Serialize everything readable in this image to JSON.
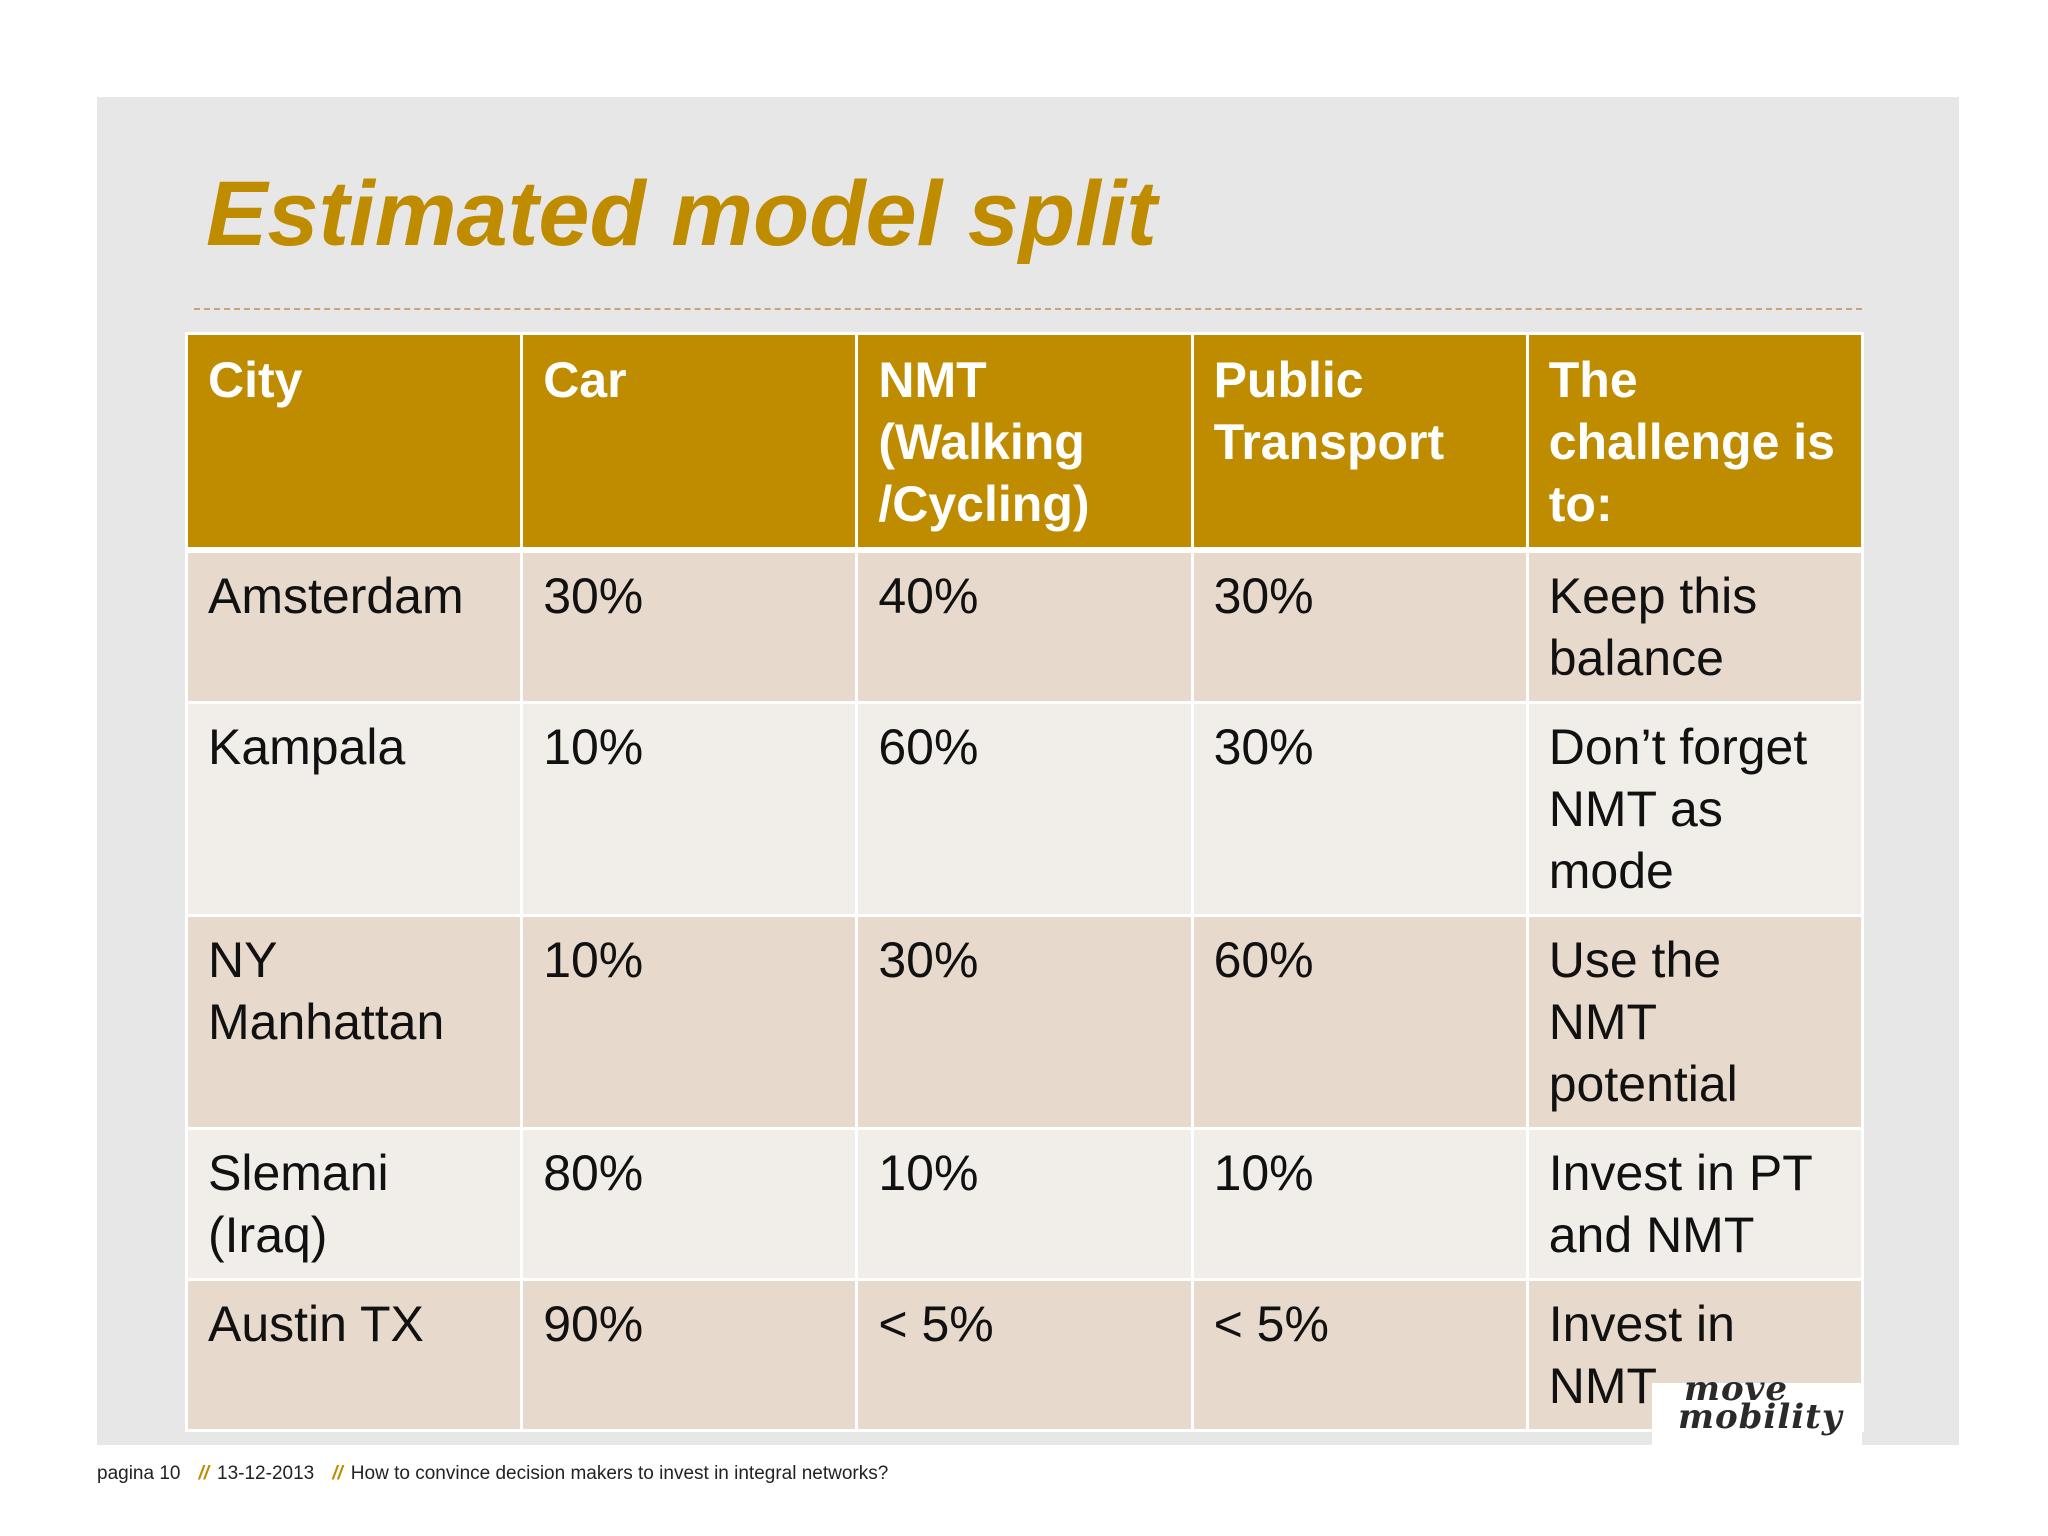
{
  "slide": {
    "title": "Estimated model split"
  },
  "table": {
    "headers": [
      "City",
      "Car",
      "NMT (Walking /Cycling)",
      "Public Transport",
      "The challenge is to:"
    ],
    "rows": [
      [
        "Amsterdam",
        "30%",
        "40%",
        "30%",
        "Keep this balance"
      ],
      [
        "Kampala",
        "10%",
        "60%",
        "30%",
        "Don’t forget NMT as mode"
      ],
      [
        "NY Manhattan",
        "10%",
        "30%",
        "60%",
        "Use the NMT potential"
      ],
      [
        "Slemani (Iraq)",
        "80%",
        "10%",
        "10%",
        "Invest in PT and NMT"
      ],
      [
        "Austin TX",
        "90%",
        "< 5%",
        "< 5%",
        "Invest in NMT"
      ]
    ]
  },
  "logo": {
    "line1": "move",
    "line2": "mobility"
  },
  "footer": {
    "page": "pagina 10",
    "separator": "//",
    "date": "13-12-2013",
    "subject": "How to convince decision makers to invest in integral networks?"
  },
  "colors": {
    "accent": "#bf8c00",
    "row_odd": "#e7d9cc",
    "row_even": "#f1eeea",
    "slide_bg": "#e8e7e8"
  }
}
